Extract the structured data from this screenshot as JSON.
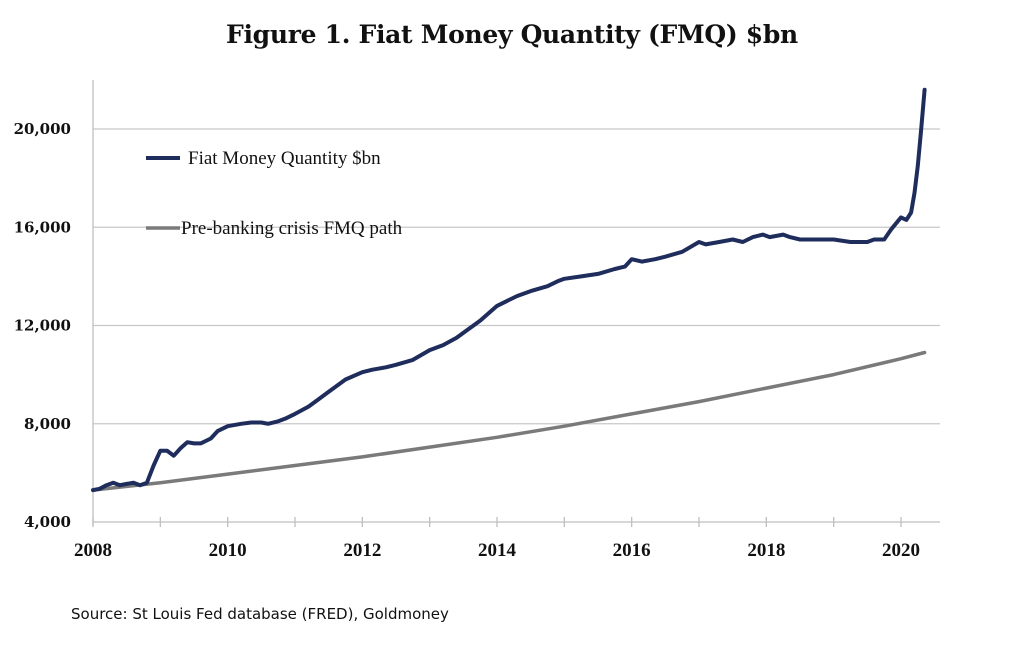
{
  "chart_data": {
    "type": "line",
    "title": "Figure 1. Fiat Money Quantity (FMQ)  $bn",
    "xlabel": "",
    "ylabel": "",
    "xlim": [
      2008,
      2020.6
    ],
    "ylim": [
      4000,
      22000
    ],
    "x_ticks": [
      "2008",
      "2010",
      "2012",
      "2014",
      "2016",
      "2018",
      "2020"
    ],
    "x_tick_values": [
      2008,
      2010,
      2012,
      2014,
      2016,
      2018,
      2020
    ],
    "y_ticks": [
      "4,000",
      "8,000",
      "12,000",
      "16,000",
      "20,000"
    ],
    "y_tick_values": [
      4000,
      8000,
      12000,
      16000,
      20000
    ],
    "grid": "horizontal",
    "legend_position": "top-left",
    "series": [
      {
        "name": "Fiat Money Quantity $bn",
        "color": "#1f2d5c",
        "x": [
          2008.0,
          2008.1,
          2008.2,
          2008.3,
          2008.4,
          2008.5,
          2008.6,
          2008.7,
          2008.8,
          2008.9,
          2009.0,
          2009.1,
          2009.2,
          2009.3,
          2009.4,
          2009.5,
          2009.6,
          2009.75,
          2009.85,
          2010.0,
          2010.2,
          2010.35,
          2010.5,
          2010.6,
          2010.75,
          2010.85,
          2011.0,
          2011.2,
          2011.35,
          2011.5,
          2011.75,
          2012.0,
          2012.15,
          2012.35,
          2012.5,
          2012.75,
          2013.0,
          2013.2,
          2013.4,
          2013.5,
          2013.75,
          2014.0,
          2014.15,
          2014.3,
          2014.5,
          2014.75,
          2014.9,
          2015.0,
          2015.25,
          2015.5,
          2015.75,
          2015.9,
          2016.0,
          2016.15,
          2016.35,
          2016.5,
          2016.75,
          2017.0,
          2017.1,
          2017.3,
          2017.5,
          2017.65,
          2017.8,
          2017.95,
          2018.05,
          2018.25,
          2018.35,
          2018.5,
          2018.75,
          2019.0,
          2019.25,
          2019.5,
          2019.6,
          2019.75,
          2019.85,
          2020.0,
          2020.08,
          2020.15,
          2020.2,
          2020.25,
          2020.3,
          2020.35
        ],
        "values": [
          5300,
          5350,
          5500,
          5600,
          5500,
          5550,
          5600,
          5500,
          5600,
          6300,
          6900,
          6900,
          6700,
          7000,
          7250,
          7200,
          7200,
          7400,
          7700,
          7900,
          8000,
          8050,
          8050,
          8000,
          8100,
          8200,
          8400,
          8700,
          9000,
          9300,
          9800,
          10100,
          10200,
          10300,
          10400,
          10600,
          11000,
          11200,
          11500,
          11700,
          12200,
          12800,
          13000,
          13200,
          13400,
          13600,
          13800,
          13900,
          14000,
          14100,
          14300,
          14400,
          14700,
          14600,
          14700,
          14800,
          15000,
          15400,
          15300,
          15400,
          15500,
          15400,
          15600,
          15700,
          15600,
          15700,
          15600,
          15500,
          15500,
          15500,
          15400,
          15400,
          15500,
          15500,
          15900,
          16400,
          16300,
          16600,
          17400,
          18500,
          20000,
          21600
        ]
      },
      {
        "name": "Pre-banking crisis FMQ path",
        "color": "#7a7a7a",
        "x": [
          2008.0,
          2009.0,
          2010.0,
          2011.0,
          2012.0,
          2013.0,
          2014.0,
          2015.0,
          2016.0,
          2017.0,
          2018.0,
          2019.0,
          2020.0,
          2020.35
        ],
        "values": [
          5300,
          5600,
          5950,
          6300,
          6650,
          7050,
          7450,
          7900,
          8400,
          8900,
          9450,
          10000,
          10650,
          10900
        ]
      }
    ],
    "source": "Source: St Louis Fed  database (FRED), Goldmoney"
  }
}
